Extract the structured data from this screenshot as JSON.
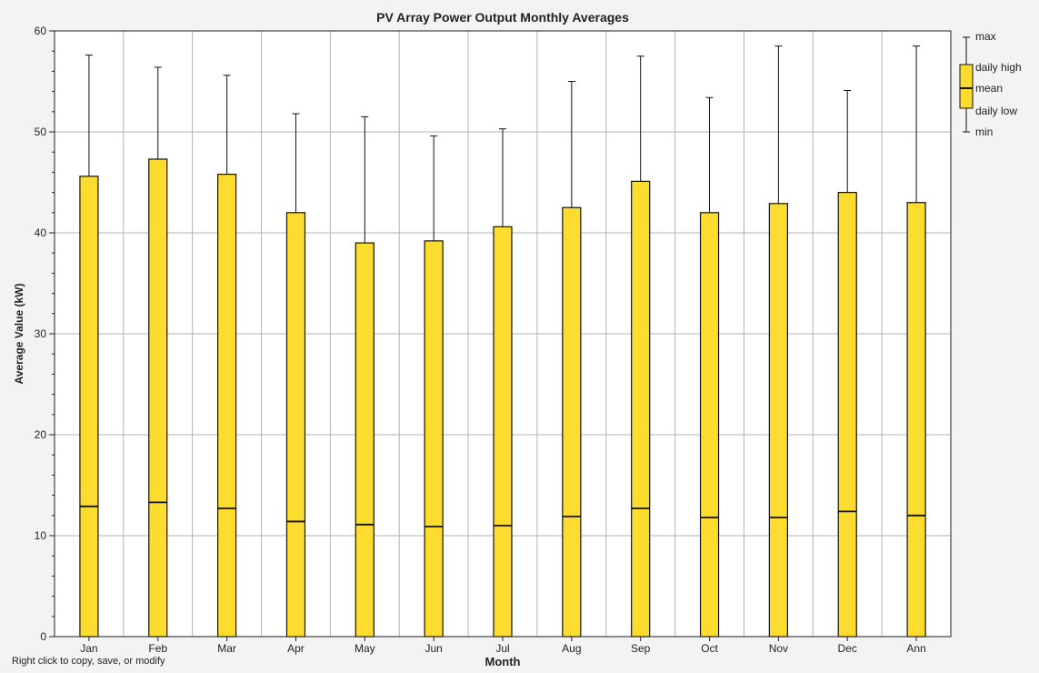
{
  "footer_hint": "Right click to copy, save, or modify",
  "colors": {
    "box_fill": "#fcdc2e",
    "box_stroke": "#111111",
    "grid": "#b3b3b3",
    "background": "#f3f3f3",
    "plot_background": "#ffffff"
  },
  "chart_data": {
    "type": "box",
    "title": "PV Array Power Output Monthly Averages",
    "xlabel": "Month",
    "ylabel": "Average Value (kW)",
    "ylim": [
      0,
      60
    ],
    "yticks": [
      0,
      10,
      20,
      30,
      40,
      50,
      60
    ],
    "grid": true,
    "legend_position": "right",
    "categories": [
      "Jan",
      "Feb",
      "Mar",
      "Apr",
      "May",
      "Jun",
      "Jul",
      "Aug",
      "Sep",
      "Oct",
      "Nov",
      "Dec",
      "Ann"
    ],
    "series": [
      {
        "key": "max",
        "values": [
          57.6,
          56.4,
          55.6,
          51.8,
          51.5,
          49.6,
          50.3,
          55.0,
          57.5,
          53.4,
          58.5,
          54.1,
          58.5
        ]
      },
      {
        "key": "daily_high",
        "values": [
          45.6,
          47.3,
          45.8,
          42.0,
          39.0,
          39.2,
          40.6,
          42.5,
          45.1,
          42.0,
          42.9,
          44.0,
          43.0
        ]
      },
      {
        "key": "mean",
        "values": [
          12.9,
          13.3,
          12.7,
          11.4,
          11.1,
          10.9,
          11.0,
          11.9,
          12.7,
          11.8,
          11.8,
          12.4,
          12.0
        ]
      },
      {
        "key": "daily_low",
        "values": [
          0,
          0,
          0,
          0,
          0,
          0,
          0,
          0,
          0,
          0,
          0,
          0,
          0
        ]
      },
      {
        "key": "min",
        "values": [
          0,
          0,
          0,
          0,
          0,
          0,
          0,
          0,
          0,
          0,
          0,
          0,
          0
        ]
      }
    ],
    "legend": {
      "max": "max",
      "daily_high": "daily high",
      "mean": "mean",
      "daily_low": "daily low",
      "min": "min"
    }
  }
}
